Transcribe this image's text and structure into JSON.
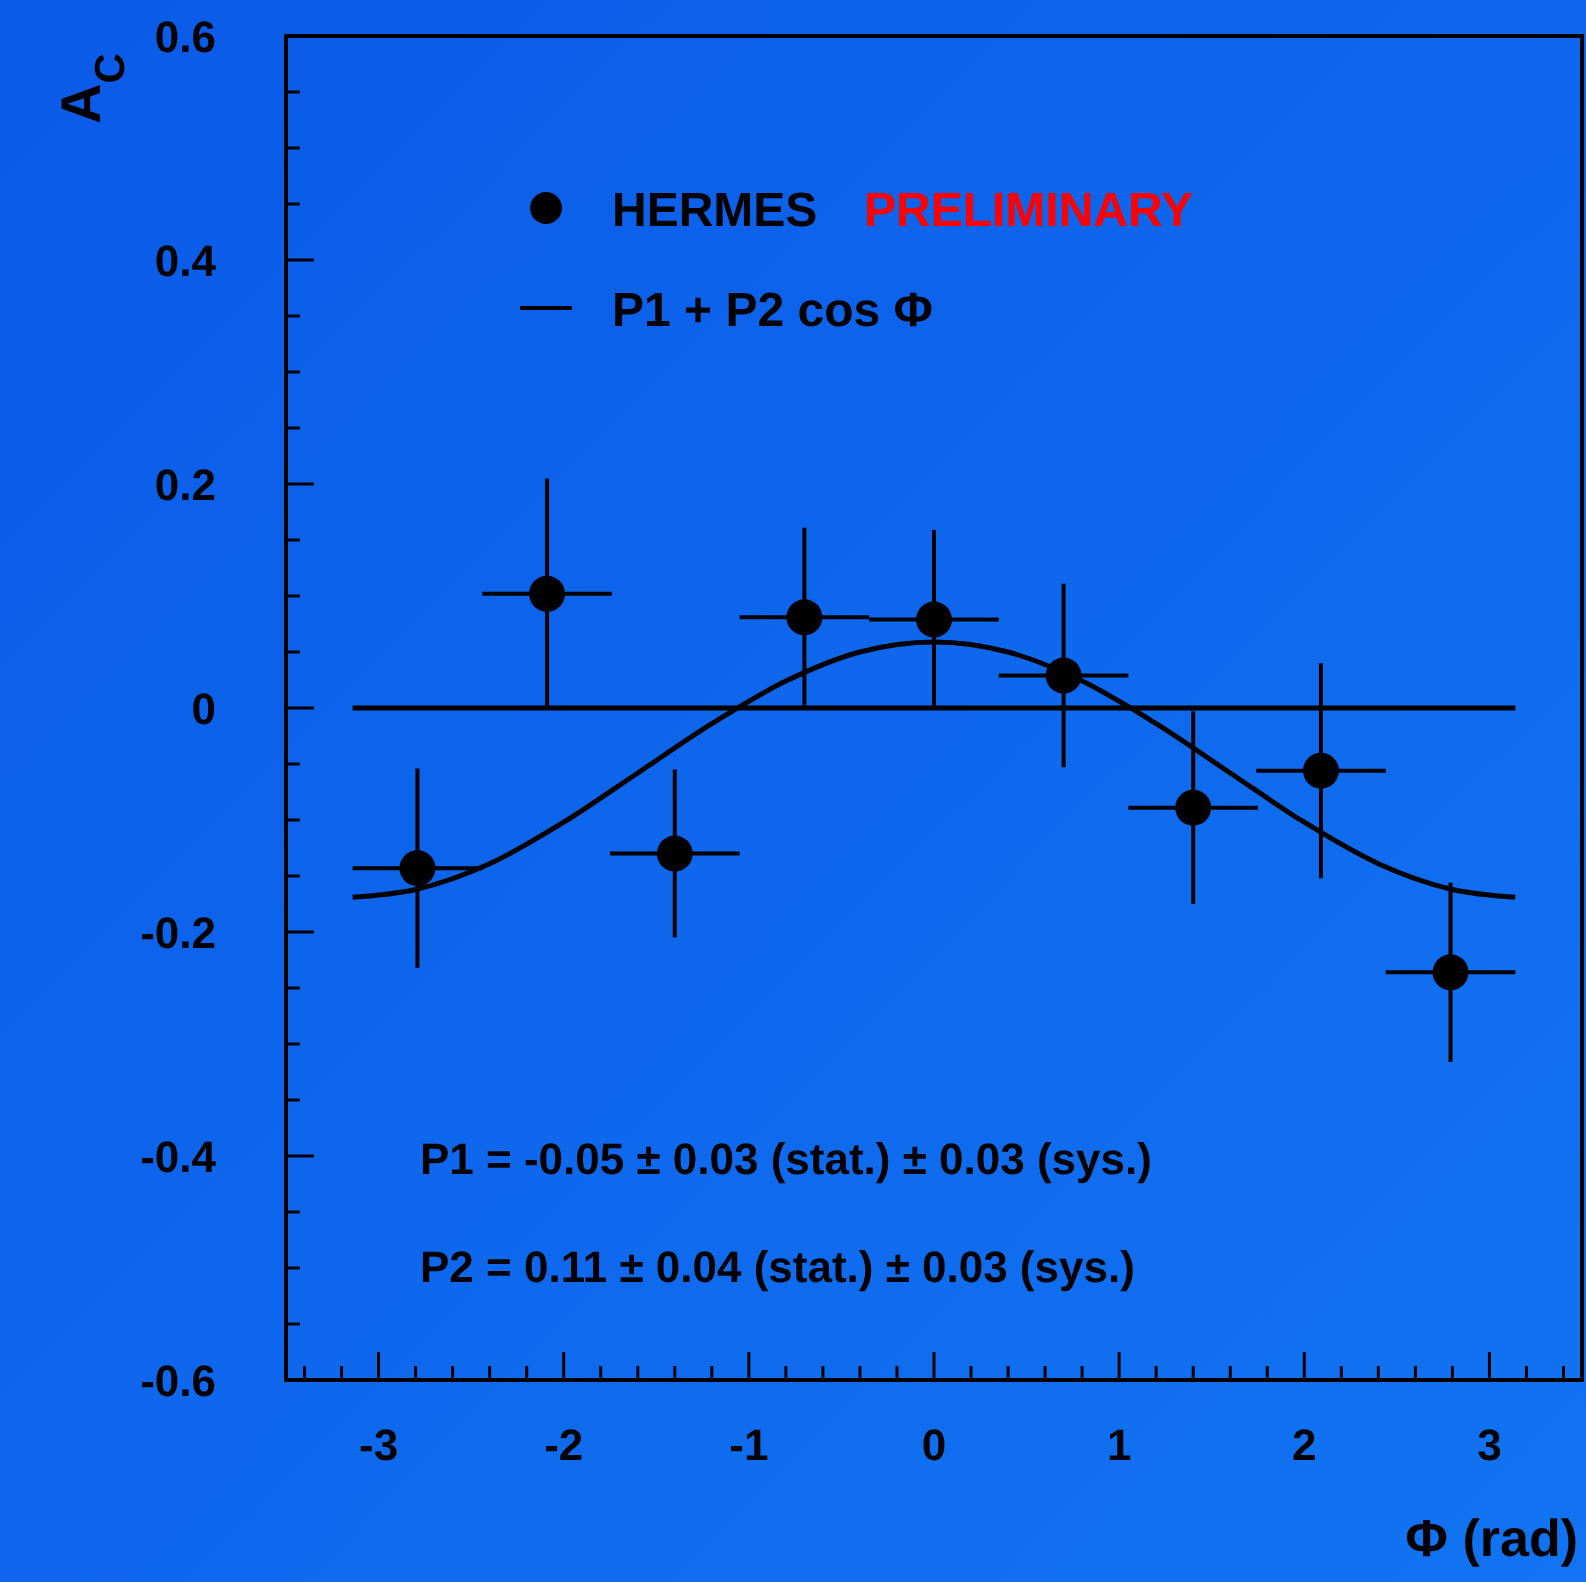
{
  "chart_data": {
    "type": "scatter",
    "xlabel": "Φ (rad)",
    "ylabel": "A$_{C}$",
    "xlim": [
      -3.5,
      3.5
    ],
    "ylim": [
      -0.6,
      0.6
    ],
    "xticks": [
      {
        "value": -3.4,
        "label": null
      },
      {
        "value": -3.2,
        "label": null
      },
      -3,
      {
        "value": -2.8,
        "label": null
      },
      {
        "value": -2.6,
        "label": null
      },
      {
        "value": -2.4,
        "label": null
      },
      {
        "value": -2.2,
        "label": null
      },
      -2,
      {
        "value": -1.8,
        "label": null
      },
      {
        "value": -1.6,
        "label": null
      },
      {
        "value": -1.4,
        "label": null
      },
      {
        "value": -1.2,
        "label": null
      },
      -1,
      {
        "value": -0.8,
        "label": null
      },
      {
        "value": -0.6,
        "label": null
      },
      {
        "value": -0.4,
        "label": null
      },
      {
        "value": -0.2,
        "label": null
      },
      0,
      {
        "value": 0.2,
        "label": null
      },
      {
        "value": 0.4,
        "label": null
      },
      {
        "value": 0.6,
        "label": null
      },
      {
        "value": 0.8,
        "label": null
      },
      1,
      {
        "value": 1.2,
        "label": null
      },
      {
        "value": 1.4,
        "label": null
      },
      {
        "value": 1.6,
        "label": null
      },
      {
        "value": 1.8,
        "label": null
      },
      2,
      {
        "value": 2.2,
        "label": null
      },
      {
        "value": 2.4,
        "label": null
      },
      {
        "value": 2.6,
        "label": null
      },
      {
        "value": 2.8,
        "label": null
      },
      3,
      {
        "value": 3.2,
        "label": null
      },
      {
        "value": 3.4,
        "label": null
      }
    ],
    "yticks": [
      -0.6,
      {
        "value": -0.55,
        "label": null
      },
      {
        "value": -0.5,
        "label": null
      },
      {
        "value": -0.45,
        "label": null
      },
      -0.4,
      {
        "value": -0.35,
        "label": null
      },
      {
        "value": -0.3,
        "label": null
      },
      {
        "value": -0.25,
        "label": null
      },
      -0.2,
      {
        "value": -0.15,
        "label": null
      },
      {
        "value": -0.1,
        "label": null
      },
      {
        "value": -0.05,
        "label": null
      },
      0,
      {
        "value": 0.05,
        "label": null
      },
      {
        "value": 0.1,
        "label": null
      },
      {
        "value": 0.15,
        "label": null
      },
      0.2,
      {
        "value": 0.25,
        "label": null
      },
      {
        "value": 0.3,
        "label": null
      },
      {
        "value": 0.35,
        "label": null
      },
      0.4,
      {
        "value": 0.45,
        "label": null
      },
      {
        "value": 0.5,
        "label": null
      },
      {
        "value": 0.55,
        "label": null
      },
      0.6
    ],
    "series": [
      {
        "name": "HERMES",
        "color": "#000000",
        "marker": "circle",
        "x": [
          -2.79,
          -2.09,
          -1.4,
          -0.7,
          0,
          0.7,
          1.4,
          2.09,
          2.79
        ],
        "values": [
          -0.143,
          0.102,
          -0.13,
          0.081,
          0.079,
          0.029,
          -0.089,
          -0.056,
          -0.236
        ],
        "errors": [
          0.089,
          0.103,
          0.075,
          0.08,
          0.08,
          0.082,
          0.086,
          0.096,
          0.08
        ],
        "xerrors": [
          0.35,
          0.35,
          0.35,
          0.35,
          0.35,
          0.35,
          0.35,
          0.35,
          0.35
        ]
      },
      {
        "name": "P1 + P2 cos Φ",
        "type": "line",
        "color": "#000000",
        "x": [
          -3.14,
          -2.8,
          -2.4,
          -2,
          -1.6,
          -1.2,
          -0.8,
          -0.4,
          0,
          0.4,
          0.8,
          1.2,
          1.6,
          2,
          2.4,
          2.8,
          3.14
        ],
        "values": [
          -0.169,
          -0.162,
          -0.139,
          -0.102,
          -0.058,
          -0.014,
          0.024,
          0.05,
          0.059,
          0.05,
          0.024,
          -0.014,
          -0.058,
          -0.102,
          -0.139,
          -0.162,
          -0.169
        ]
      }
    ],
    "ref_lines": [
      {
        "axis": "y",
        "value": 0,
        "color": "#000000"
      }
    ],
    "legend": "top left",
    "annotations": [
      "PRELIMINARY",
      "P1 = -0.05 ± 0.03 (stat.) ± 0.03 (sys.)",
      "P2 =  0.11 ± 0.04 (stat.) ± 0.03 (sys.)"
    ]
  }
}
